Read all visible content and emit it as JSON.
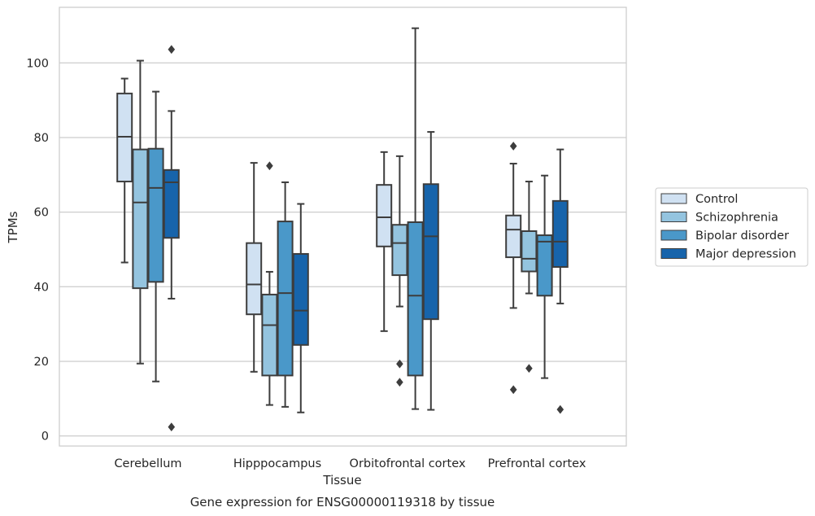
{
  "chart_data": {
    "type": "box",
    "caption": "Gene expression for ENSG00000119318 by tissue",
    "xlabel": "Tissue",
    "ylabel": "TPMs",
    "ylim": [
      -2.7,
      114.9
    ],
    "yticks": [
      0,
      20,
      40,
      60,
      80,
      100
    ],
    "ytick_labels": [
      "0",
      "20",
      "40",
      "60",
      "80",
      "100"
    ],
    "grid": "horizontal",
    "legend_position": "right",
    "categories": [
      "Cerebellum",
      "Hipppocampus",
      "Orbitofrontal cortex",
      "Prefrontal cortex"
    ],
    "series": [
      {
        "name": "Control",
        "color": "#d0e1f2",
        "boxes": [
          {
            "whisker_low": 46.5,
            "q1": 68.2,
            "median": 80.2,
            "q3": 91.8,
            "whisker_high": 95.8,
            "outliers": []
          },
          {
            "whisker_low": 17.2,
            "q1": 32.6,
            "median": 40.6,
            "q3": 51.7,
            "whisker_high": 73.2,
            "outliers": []
          },
          {
            "whisker_low": 28.1,
            "q1": 50.8,
            "median": 58.6,
            "q3": 67.3,
            "whisker_high": 76.1,
            "outliers": []
          },
          {
            "whisker_low": 34.3,
            "q1": 47.9,
            "median": 55.3,
            "q3": 59.1,
            "whisker_high": 73.0,
            "outliers": [
              77.7,
              12.4
            ]
          }
        ]
      },
      {
        "name": "Schizophrenia",
        "color": "#94c4df",
        "boxes": [
          {
            "whisker_low": 19.4,
            "q1": 39.6,
            "median": 62.6,
            "q3": 76.8,
            "whisker_high": 100.6,
            "outliers": []
          },
          {
            "whisker_low": 8.3,
            "q1": 16.2,
            "median": 29.7,
            "q3": 37.9,
            "whisker_high": 44.0,
            "outliers": [
              72.4
            ]
          },
          {
            "whisker_low": 34.7,
            "q1": 43.1,
            "median": 51.7,
            "q3": 56.6,
            "whisker_high": 75.0,
            "outliers": [
              19.3,
              14.4
            ]
          },
          {
            "whisker_low": 38.2,
            "q1": 44.1,
            "median": 47.5,
            "q3": 54.9,
            "whisker_high": 68.2,
            "outliers": [
              18.1
            ]
          }
        ]
      },
      {
        "name": "Bipolar disorder",
        "color": "#4a98c9",
        "boxes": [
          {
            "whisker_low": 14.6,
            "q1": 41.3,
            "median": 66.5,
            "q3": 77.0,
            "whisker_high": 92.3,
            "outliers": []
          },
          {
            "whisker_low": 7.8,
            "q1": 16.2,
            "median": 38.3,
            "q3": 57.5,
            "whisker_high": 68.0,
            "outliers": []
          },
          {
            "whisker_low": 7.2,
            "q1": 16.2,
            "median": 37.6,
            "q3": 57.3,
            "whisker_high": 109.3,
            "outliers": []
          },
          {
            "whisker_low": 15.5,
            "q1": 37.6,
            "median": 52.1,
            "q3": 53.8,
            "whisker_high": 69.8,
            "outliers": []
          }
        ]
      },
      {
        "name": "Major depression",
        "color": "#1764ab",
        "boxes": [
          {
            "whisker_low": 36.8,
            "q1": 53.1,
            "median": 68.0,
            "q3": 71.3,
            "whisker_high": 87.1,
            "outliers": [
              103.6,
              2.4
            ]
          },
          {
            "whisker_low": 6.3,
            "q1": 24.4,
            "median": 33.6,
            "q3": 48.8,
            "whisker_high": 62.2,
            "outliers": []
          },
          {
            "whisker_low": 7.0,
            "q1": 31.3,
            "median": 53.5,
            "q3": 67.5,
            "whisker_high": 81.5,
            "outliers": []
          },
          {
            "whisker_low": 35.5,
            "q1": 45.3,
            "median": 52.1,
            "q3": 63.0,
            "whisker_high": 76.8,
            "outliers": [
              7.1
            ]
          }
        ]
      }
    ]
  }
}
